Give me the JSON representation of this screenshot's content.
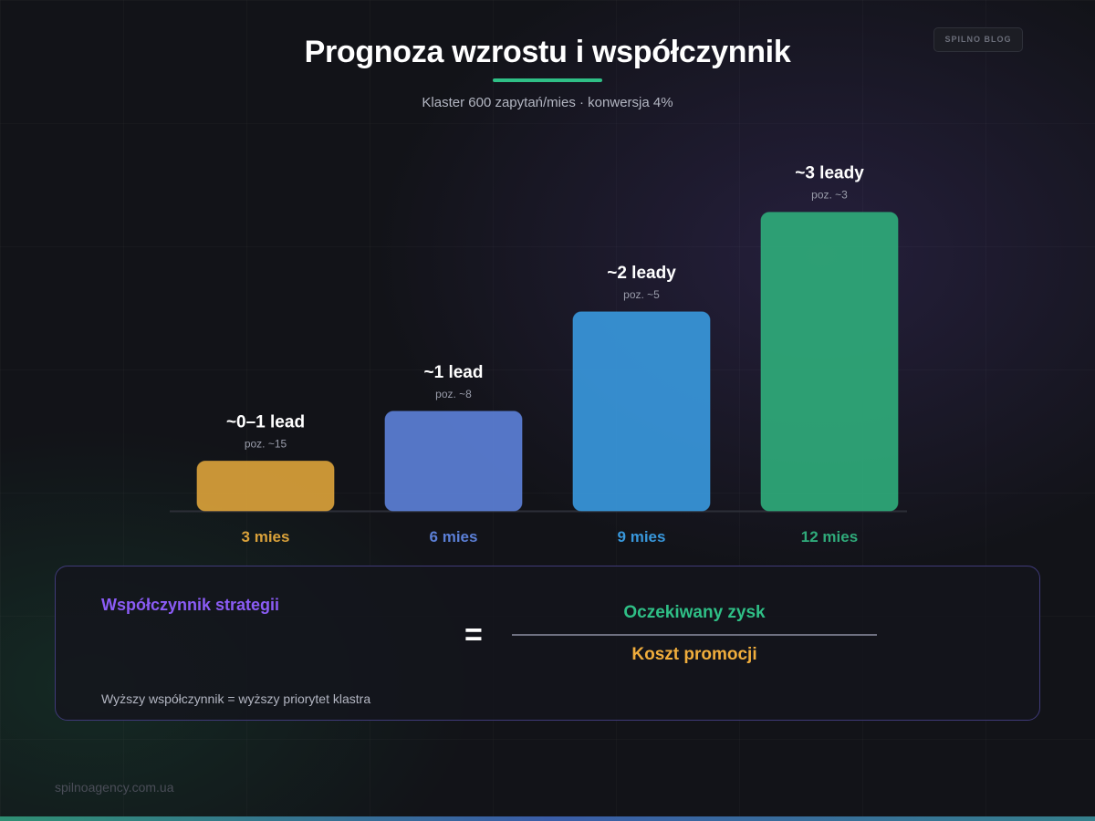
{
  "header": {
    "title": "Prognoza wzrostu i współczynnik",
    "subtitle": "Klaster 600 zapytań/mies · konwersja 4%",
    "badge": "SPILNO BLOG"
  },
  "chart_data": {
    "type": "bar",
    "categories": [
      "3 mies",
      "6 mies",
      "9 mies",
      "12 mies"
    ],
    "values": [
      0.5,
      1,
      2,
      3
    ],
    "value_labels": [
      "~0–1 lead",
      "~1 lead",
      "~2 leady",
      "~3 leady"
    ],
    "position_labels": [
      "poz. ~15",
      "poz. ~8",
      "poz. ~5",
      "poz. ~3"
    ],
    "colors": [
      "#d9a13a",
      "#5b7fd6",
      "#3897db",
      "#2faa7a"
    ],
    "ylim": [
      0,
      3.3
    ],
    "grid": false,
    "legend": "none"
  },
  "formula": {
    "title": "Współczynnik strategii",
    "equals": "=",
    "numerator": "Oczekiwany zysk",
    "denominator": "Koszt promocji",
    "note": "Wyższy współczynnik = wyższy priorytet klastra"
  },
  "footer": {
    "site": "spilnoagency.com.ua"
  }
}
